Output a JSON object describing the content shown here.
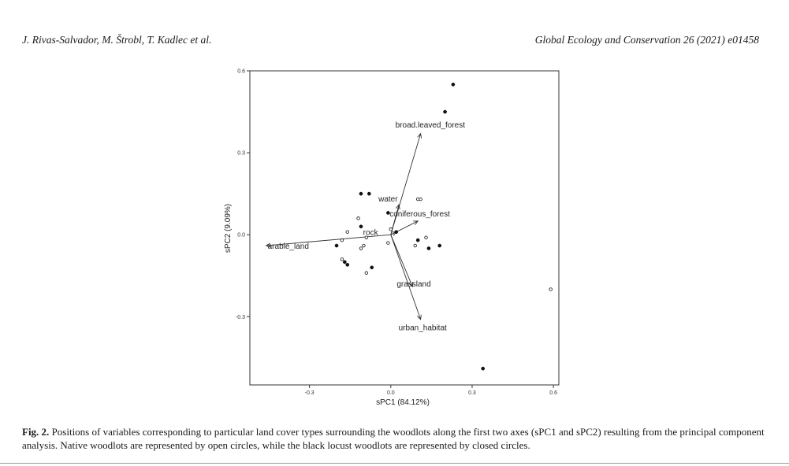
{
  "header": {
    "authors": "J. Rivas-Salvador, M. Štrobl, T. Kadlec et al.",
    "journal": "Global Ecology and Conservation 26 (2021) e01458"
  },
  "chart_data": {
    "type": "scatter",
    "xlabel": "sPC1 (84.12%)",
    "ylabel": "sPC2 (9.09%)",
    "xlim": [
      -0.52,
      0.62
    ],
    "ylim": [
      -0.55,
      0.6
    ],
    "xticks": [
      -0.3,
      0.0,
      0.3,
      0.6
    ],
    "xtick_labels": [
      "-0.3",
      "0.0",
      "0.3",
      "0.6"
    ],
    "yticks": [
      -0.3,
      0.0,
      0.3,
      0.6
    ],
    "ytick_labels": [
      "-0.3",
      "0.0",
      "0.3",
      "0.6"
    ],
    "grid": false,
    "series": [
      {
        "name": "Native woodlots (open circles)",
        "marker": "open-circle",
        "points": [
          [
            0.59,
            -0.2
          ],
          [
            -0.12,
            0.06
          ],
          [
            -0.16,
            0.01
          ],
          [
            -0.18,
            -0.02
          ],
          [
            -0.1,
            -0.04
          ],
          [
            -0.09,
            -0.01
          ],
          [
            -0.18,
            -0.09
          ],
          [
            -0.09,
            -0.14
          ],
          [
            0.1,
            0.13
          ],
          [
            0.11,
            0.13
          ],
          [
            0.09,
            -0.04
          ],
          [
            0.13,
            -0.01
          ],
          [
            -0.01,
            -0.03
          ],
          [
            0.0,
            0.02
          ],
          [
            -0.11,
            -0.05
          ]
        ]
      },
      {
        "name": "Black locust woodlots (closed circles)",
        "marker": "filled-circle",
        "points": [
          [
            0.23,
            0.55
          ],
          [
            0.2,
            0.45
          ],
          [
            0.34,
            -0.49
          ],
          [
            -0.11,
            0.15
          ],
          [
            -0.08,
            0.15
          ],
          [
            -0.01,
            0.08
          ],
          [
            -0.11,
            0.03
          ],
          [
            -0.2,
            -0.04
          ],
          [
            -0.17,
            -0.1
          ],
          [
            -0.16,
            -0.11
          ],
          [
            -0.07,
            -0.12
          ],
          [
            0.1,
            -0.02
          ],
          [
            0.14,
            -0.05
          ],
          [
            0.18,
            -0.04
          ],
          [
            0.02,
            0.01
          ]
        ]
      }
    ],
    "vectors": [
      {
        "label": "broad.leaved_forest",
        "x": 0.11,
        "y": 0.37
      },
      {
        "label": "water",
        "x": 0.03,
        "y": 0.11
      },
      {
        "label": "coniferous_forest",
        "x": 0.1,
        "y": 0.05
      },
      {
        "label": "rock",
        "x": 0.02,
        "y": 0.01
      },
      {
        "label": "arable_land",
        "x": -0.46,
        "y": -0.04
      },
      {
        "label": "grassland",
        "x": 0.08,
        "y": -0.19
      },
      {
        "label": "urban_habitat",
        "x": 0.11,
        "y": -0.31
      }
    ]
  },
  "caption": {
    "label": "Fig. 2.",
    "text": "Positions of variables corresponding to particular land cover types surrounding the woodlots along the first two axes (sPC1 and sPC2) resulting from the principal component analysis. Native woodlots are represented by open circles, while the black locust woodlots are represented by closed circles."
  }
}
